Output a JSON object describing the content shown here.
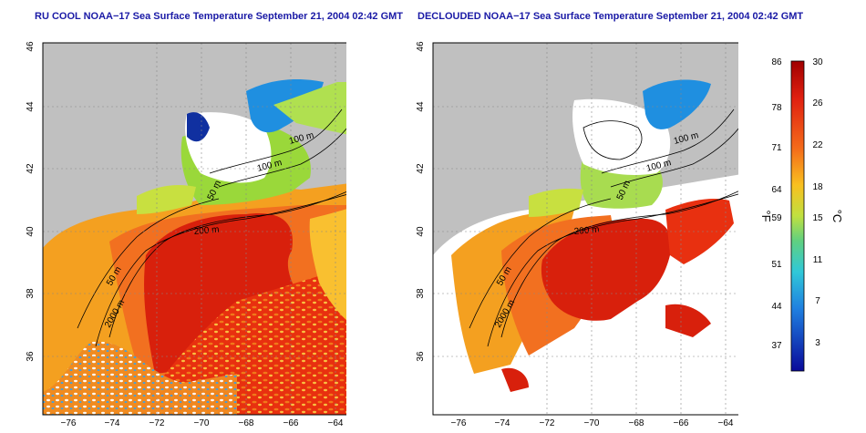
{
  "left_panel": {
    "title": "RU COOL NOAA−17 Sea Surface Temperature September 21, 2004 02:42 GMT",
    "contour_labels": [
      "100 m",
      "100 m",
      "50 m",
      "200 m",
      "50 m",
      "2000 m"
    ]
  },
  "right_panel": {
    "title": "DECLOUDED NOAA−17 Sea Surface Temperature September 21, 2004 02:42 GMT",
    "contour_labels": [
      "100 m",
      "100 m",
      "50 m",
      "200 m",
      "50 m",
      "2000 m"
    ]
  },
  "axes": {
    "x_ticks": [
      "−76",
      "−74",
      "−72",
      "−70",
      "−68",
      "−66",
      "−64"
    ],
    "y_ticks": [
      "46",
      "44",
      "42",
      "40",
      "38",
      "36"
    ]
  },
  "legend": {
    "fahrenheit_label": "°F",
    "celsius_label": "°C",
    "fahrenheit_ticks": [
      "86",
      "78",
      "71",
      "64",
      "59",
      "51",
      "44",
      "37"
    ],
    "celsius_ticks": [
      "30",
      "26",
      "22",
      "18",
      "15",
      "11",
      "7",
      "3"
    ]
  },
  "colors": {
    "land": "#c0c0c0",
    "title": "#1a1aa6",
    "warm": "#d8200c",
    "cool": "#1f8fe0",
    "cloud": "#ffffff"
  }
}
